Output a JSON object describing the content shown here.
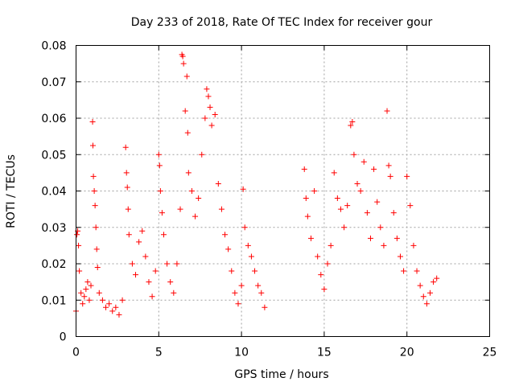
{
  "chart_data": {
    "type": "scatter",
    "title": "Day 233 of 2018, Rate Of TEC Index for receiver gour",
    "xlabel": "GPS time / hours",
    "ylabel": "ROTI / TECUs",
    "xlim": [
      0,
      25
    ],
    "ylim": [
      0,
      0.08
    ],
    "x_ticks": [
      0,
      5,
      10,
      15,
      20,
      25
    ],
    "x_tick_labels": [
      "0",
      "5",
      "10",
      "15",
      "20",
      "25"
    ],
    "y_ticks": [
      0,
      0.01,
      0.02,
      0.03,
      0.04,
      0.05,
      0.06,
      0.07,
      0.08
    ],
    "y_tick_labels": [
      "0",
      "0.01",
      "0.02",
      "0.03",
      "0.04",
      "0.05",
      "0.06",
      "0.07",
      "0.08"
    ],
    "grid": true,
    "marker": "plus",
    "marker_color": "#ff0000",
    "data_gap_hours": [
      11.5,
      13.8
    ],
    "points": [
      [
        0.0,
        0.007
      ],
      [
        0.05,
        0.028
      ],
      [
        0.1,
        0.029
      ],
      [
        0.15,
        0.025
      ],
      [
        0.2,
        0.018
      ],
      [
        0.3,
        0.012
      ],
      [
        0.4,
        0.009
      ],
      [
        0.5,
        0.011
      ],
      [
        0.6,
        0.013
      ],
      [
        0.7,
        0.015
      ],
      [
        0.8,
        0.01
      ],
      [
        0.9,
        0.014
      ],
      [
        1.0,
        0.059
      ],
      [
        1.02,
        0.0525
      ],
      [
        1.05,
        0.044
      ],
      [
        1.1,
        0.04
      ],
      [
        1.15,
        0.036
      ],
      [
        1.2,
        0.03
      ],
      [
        1.25,
        0.024
      ],
      [
        1.3,
        0.019
      ],
      [
        1.4,
        0.012
      ],
      [
        1.6,
        0.01
      ],
      [
        1.8,
        0.008
      ],
      [
        2.0,
        0.009
      ],
      [
        2.2,
        0.007
      ],
      [
        2.4,
        0.008
      ],
      [
        2.6,
        0.006
      ],
      [
        2.8,
        0.01
      ],
      [
        3.0,
        0.052
      ],
      [
        3.05,
        0.045
      ],
      [
        3.1,
        0.041
      ],
      [
        3.15,
        0.035
      ],
      [
        3.2,
        0.028
      ],
      [
        3.4,
        0.02
      ],
      [
        3.6,
        0.017
      ],
      [
        3.8,
        0.026
      ],
      [
        4.0,
        0.029
      ],
      [
        4.2,
        0.022
      ],
      [
        4.4,
        0.015
      ],
      [
        4.6,
        0.011
      ],
      [
        4.8,
        0.018
      ],
      [
        5.0,
        0.05
      ],
      [
        5.05,
        0.047
      ],
      [
        5.1,
        0.04
      ],
      [
        5.2,
        0.034
      ],
      [
        5.3,
        0.028
      ],
      [
        5.5,
        0.02
      ],
      [
        5.7,
        0.015
      ],
      [
        5.9,
        0.012
      ],
      [
        6.1,
        0.02
      ],
      [
        6.3,
        0.035
      ],
      [
        6.4,
        0.0775
      ],
      [
        6.45,
        0.077
      ],
      [
        6.5,
        0.075
      ],
      [
        6.6,
        0.062
      ],
      [
        6.7,
        0.0715
      ],
      [
        6.75,
        0.056
      ],
      [
        6.8,
        0.045
      ],
      [
        7.0,
        0.04
      ],
      [
        7.2,
        0.033
      ],
      [
        7.4,
        0.038
      ],
      [
        7.6,
        0.05
      ],
      [
        7.8,
        0.06
      ],
      [
        7.9,
        0.068
      ],
      [
        8.0,
        0.066
      ],
      [
        8.1,
        0.063
      ],
      [
        8.2,
        0.058
      ],
      [
        8.4,
        0.061
      ],
      [
        8.6,
        0.042
      ],
      [
        8.8,
        0.035
      ],
      [
        9.0,
        0.028
      ],
      [
        9.2,
        0.024
      ],
      [
        9.4,
        0.018
      ],
      [
        9.6,
        0.012
      ],
      [
        9.8,
        0.009
      ],
      [
        10.0,
        0.014
      ],
      [
        10.1,
        0.0405
      ],
      [
        10.2,
        0.03
      ],
      [
        10.4,
        0.025
      ],
      [
        10.6,
        0.022
      ],
      [
        10.8,
        0.018
      ],
      [
        11.0,
        0.014
      ],
      [
        11.2,
        0.012
      ],
      [
        11.4,
        0.008
      ],
      [
        13.8,
        0.046
      ],
      [
        13.9,
        0.038
      ],
      [
        14.0,
        0.033
      ],
      [
        14.2,
        0.027
      ],
      [
        14.4,
        0.04
      ],
      [
        14.6,
        0.022
      ],
      [
        14.8,
        0.017
      ],
      [
        15.0,
        0.013
      ],
      [
        15.2,
        0.02
      ],
      [
        15.4,
        0.025
      ],
      [
        15.6,
        0.045
      ],
      [
        15.8,
        0.038
      ],
      [
        16.0,
        0.035
      ],
      [
        16.2,
        0.03
      ],
      [
        16.4,
        0.036
      ],
      [
        16.6,
        0.058
      ],
      [
        16.7,
        0.059
      ],
      [
        16.8,
        0.05
      ],
      [
        17.0,
        0.042
      ],
      [
        17.2,
        0.04
      ],
      [
        17.4,
        0.048
      ],
      [
        17.6,
        0.034
      ],
      [
        17.8,
        0.027
      ],
      [
        18.0,
        0.046
      ],
      [
        18.2,
        0.037
      ],
      [
        18.4,
        0.03
      ],
      [
        18.6,
        0.025
      ],
      [
        18.8,
        0.062
      ],
      [
        18.9,
        0.047
      ],
      [
        19.0,
        0.044
      ],
      [
        19.2,
        0.034
      ],
      [
        19.4,
        0.027
      ],
      [
        19.6,
        0.022
      ],
      [
        19.8,
        0.018
      ],
      [
        20.0,
        0.044
      ],
      [
        20.2,
        0.036
      ],
      [
        20.4,
        0.025
      ],
      [
        20.6,
        0.018
      ],
      [
        20.8,
        0.014
      ],
      [
        21.0,
        0.011
      ],
      [
        21.2,
        0.009
      ],
      [
        21.4,
        0.012
      ],
      [
        21.6,
        0.015
      ],
      [
        21.8,
        0.016
      ]
    ]
  }
}
